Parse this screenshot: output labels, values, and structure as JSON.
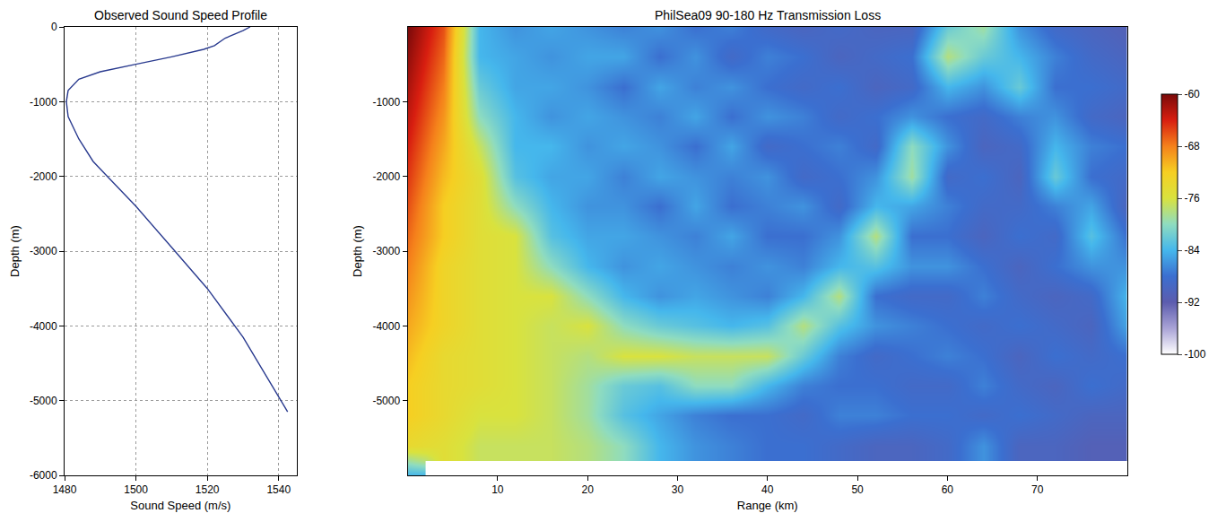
{
  "chart_data": [
    {
      "type": "line",
      "title": "Observed Sound Speed Profile",
      "x_label": "Sound Speed (m/s)",
      "y_label": "Depth (m)",
      "color": "#2a3b8f",
      "grid": true,
      "x": [
        1532,
        1530,
        1525,
        1522,
        1519,
        1510,
        1500,
        1490,
        1484,
        1481,
        1480.5,
        1481,
        1484,
        1488,
        1492,
        1500,
        1510,
        1520,
        1530,
        1542.5
      ],
      "y": [
        0,
        -50,
        -150,
        -250,
        -300,
        -400,
        -500,
        -600,
        -700,
        -850,
        -1000,
        -1200,
        -1500,
        -1800,
        -2000,
        -2400,
        -2950,
        -3500,
        -4150,
        -5150
      ],
      "xlim": [
        1480,
        1545
      ],
      "xticks": [
        1480,
        1500,
        1520,
        1540
      ],
      "ylim": [
        -6000,
        0
      ],
      "yticks": [
        -6000,
        -5000,
        -4000,
        -3000,
        -2000,
        -1000,
        0
      ]
    },
    {
      "type": "heatmap",
      "title": "PhilSea09 90-180 Hz Transmission Loss",
      "x_label": "Range (km)",
      "y_label": "Depth (m)",
      "grid": false,
      "x": [
        0,
        4,
        8,
        12,
        16,
        20,
        24,
        28,
        32,
        36,
        40,
        44,
        48,
        52,
        56,
        60,
        64,
        68,
        72,
        76,
        80
      ],
      "y": [
        0,
        -400,
        -800,
        -1200,
        -1600,
        -2000,
        -2400,
        -2800,
        -3200,
        -3600,
        -4000,
        -4400,
        -4800,
        -5200,
        -5600,
        -6000
      ],
      "cells": [
        [
          -60,
          -66,
          -84,
          -86,
          -85,
          -86,
          -87,
          -86,
          -88,
          -87,
          -89,
          -90,
          -89,
          -90,
          -90,
          -82,
          -79,
          -86,
          -89,
          -90,
          -91
        ],
        [
          -61,
          -67,
          -84,
          -85,
          -86,
          -85,
          -85,
          -88,
          -86,
          -89,
          -87,
          -88,
          -90,
          -89,
          -88,
          -78,
          -82,
          -84,
          -87,
          -89,
          -90
        ],
        [
          -62,
          -68,
          -82,
          -85,
          -85,
          -86,
          -88,
          -85,
          -87,
          -86,
          -88,
          -89,
          -88,
          -90,
          -89,
          -84,
          -86,
          -82,
          -88,
          -88,
          -89
        ],
        [
          -63,
          -69,
          -80,
          -84,
          -86,
          -85,
          -86,
          -87,
          -85,
          -88,
          -86,
          -87,
          -89,
          -88,
          -86,
          -88,
          -89,
          -87,
          -86,
          -89,
          -90
        ],
        [
          -64,
          -70,
          -77,
          -84,
          -84,
          -86,
          -85,
          -86,
          -88,
          -85,
          -89,
          -88,
          -87,
          -89,
          -80,
          -86,
          -90,
          -89,
          -84,
          -87,
          -88
        ],
        [
          -65,
          -71,
          -75,
          -83,
          -85,
          -85,
          -87,
          -85,
          -86,
          -87,
          -86,
          -89,
          -88,
          -86,
          -79,
          -89,
          -88,
          -90,
          -82,
          -88,
          -89
        ],
        [
          -66,
          -72,
          -75,
          -80,
          -84,
          -86,
          -86,
          -88,
          -85,
          -88,
          -87,
          -86,
          -89,
          -84,
          -85,
          -87,
          -89,
          -89,
          -87,
          -85,
          -90
        ],
        [
          -67,
          -72,
          -75,
          -76,
          -83,
          -85,
          -85,
          -86,
          -87,
          -85,
          -88,
          -88,
          -86,
          -78,
          -88,
          -88,
          -90,
          -88,
          -89,
          -83,
          -88
        ],
        [
          -68,
          -73,
          -75,
          -76,
          -80,
          -84,
          -86,
          -85,
          -86,
          -87,
          -86,
          -87,
          -84,
          -83,
          -86,
          -86,
          -88,
          -90,
          -88,
          -86,
          -86
        ],
        [
          -69,
          -73,
          -75,
          -76,
          -76,
          -80,
          -84,
          -86,
          -85,
          -86,
          -87,
          -84,
          -78,
          -88,
          -89,
          -89,
          -87,
          -89,
          -90,
          -89,
          -84
        ],
        [
          -70,
          -73,
          -75,
          -76,
          -77,
          -76,
          -80,
          -82,
          -83,
          -84,
          -83,
          -78,
          -83,
          -86,
          -87,
          -88,
          -89,
          -88,
          -89,
          -90,
          -85
        ],
        [
          -71,
          -74,
          -75,
          -76,
          -77,
          -78,
          -76,
          -76,
          -77,
          -77,
          -77,
          -82,
          -87,
          -89,
          -88,
          -87,
          -88,
          -90,
          -88,
          -89,
          -88
        ],
        [
          -72,
          -74,
          -75,
          -76,
          -77,
          -79,
          -82,
          -83,
          -80,
          -80,
          -84,
          -87,
          -88,
          -88,
          -89,
          -89,
          -87,
          -89,
          -90,
          -88,
          -89
        ],
        [
          -72,
          -74,
          -76,
          -76,
          -77,
          -79,
          -83,
          -85,
          -87,
          -88,
          -88,
          -89,
          -87,
          -87,
          -88,
          -88,
          -89,
          -88,
          -89,
          -90,
          -90
        ],
        [
          -74,
          -75,
          -77,
          -77,
          -77,
          -78,
          -80,
          -84,
          -86,
          -87,
          -88,
          -88,
          -89,
          -90,
          -90,
          -89,
          -86,
          -90,
          -90,
          -91,
          -91
        ],
        [
          -84,
          null,
          null,
          null,
          null,
          null,
          null,
          null,
          null,
          null,
          null,
          null,
          null,
          null,
          null,
          null,
          null,
          null,
          null,
          null,
          null
        ]
      ],
      "xlim": [
        0,
        80
      ],
      "xticks": [
        10,
        20,
        30,
        40,
        50,
        60,
        70
      ],
      "ylim": [
        -6000,
        0
      ],
      "yticks": [
        -5000,
        -4000,
        -3000,
        -2000,
        -1000
      ],
      "colorbar": {
        "range": [
          -100,
          -60
        ],
        "ticks": [
          -100,
          -92,
          -84,
          -76,
          -68,
          -60
        ]
      }
    }
  ]
}
